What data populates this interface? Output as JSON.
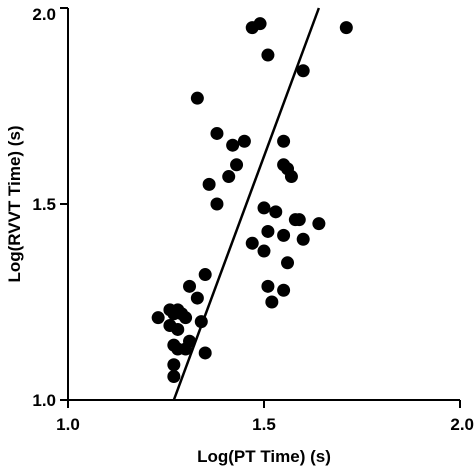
{
  "chart_data": {
    "type": "scatter",
    "xlabel": "Log(PT Time) (s)",
    "ylabel": "Log(RVVT Time) (s)",
    "xlim": [
      1.0,
      2.0
    ],
    "ylim": [
      1.0,
      2.0
    ],
    "xticks": [
      "1.0",
      "1.5",
      "2.0"
    ],
    "yticks": [
      "1.0",
      "1.5",
      "2.0"
    ],
    "grid": false,
    "marker_color": "#000000",
    "points": [
      {
        "x": 1.47,
        "y": 1.95
      },
      {
        "x": 1.49,
        "y": 1.96
      },
      {
        "x": 1.51,
        "y": 1.88
      },
      {
        "x": 1.71,
        "y": 1.95
      },
      {
        "x": 1.6,
        "y": 1.84
      },
      {
        "x": 1.33,
        "y": 1.77
      },
      {
        "x": 1.38,
        "y": 1.68
      },
      {
        "x": 1.42,
        "y": 1.65
      },
      {
        "x": 1.45,
        "y": 1.66
      },
      {
        "x": 1.55,
        "y": 1.66
      },
      {
        "x": 1.43,
        "y": 1.6
      },
      {
        "x": 1.55,
        "y": 1.6
      },
      {
        "x": 1.56,
        "y": 1.59
      },
      {
        "x": 1.41,
        "y": 1.57
      },
      {
        "x": 1.57,
        "y": 1.57
      },
      {
        "x": 1.36,
        "y": 1.55
      },
      {
        "x": 1.38,
        "y": 1.5
      },
      {
        "x": 1.5,
        "y": 1.49
      },
      {
        "x": 1.53,
        "y": 1.48
      },
      {
        "x": 1.58,
        "y": 1.46
      },
      {
        "x": 1.59,
        "y": 1.46
      },
      {
        "x": 1.64,
        "y": 1.45
      },
      {
        "x": 1.51,
        "y": 1.43
      },
      {
        "x": 1.47,
        "y": 1.4
      },
      {
        "x": 1.55,
        "y": 1.42
      },
      {
        "x": 1.6,
        "y": 1.41
      },
      {
        "x": 1.5,
        "y": 1.38
      },
      {
        "x": 1.56,
        "y": 1.35
      },
      {
        "x": 1.35,
        "y": 1.32
      },
      {
        "x": 1.51,
        "y": 1.29
      },
      {
        "x": 1.55,
        "y": 1.28
      },
      {
        "x": 1.52,
        "y": 1.25
      },
      {
        "x": 1.31,
        "y": 1.29
      },
      {
        "x": 1.33,
        "y": 1.26
      },
      {
        "x": 1.23,
        "y": 1.21
      },
      {
        "x": 1.26,
        "y": 1.23
      },
      {
        "x": 1.27,
        "y": 1.22
      },
      {
        "x": 1.28,
        "y": 1.23
      },
      {
        "x": 1.29,
        "y": 1.22
      },
      {
        "x": 1.3,
        "y": 1.21
      },
      {
        "x": 1.26,
        "y": 1.19
      },
      {
        "x": 1.28,
        "y": 1.18
      },
      {
        "x": 1.34,
        "y": 1.2
      },
      {
        "x": 1.31,
        "y": 1.15
      },
      {
        "x": 1.27,
        "y": 1.14
      },
      {
        "x": 1.28,
        "y": 1.13
      },
      {
        "x": 1.3,
        "y": 1.13
      },
      {
        "x": 1.35,
        "y": 1.12
      },
      {
        "x": 1.27,
        "y": 1.09
      },
      {
        "x": 1.27,
        "y": 1.06
      }
    ],
    "fit_line": {
      "x1": 1.27,
      "y1": 1.0,
      "x2": 1.64,
      "y2": 2.0
    }
  }
}
